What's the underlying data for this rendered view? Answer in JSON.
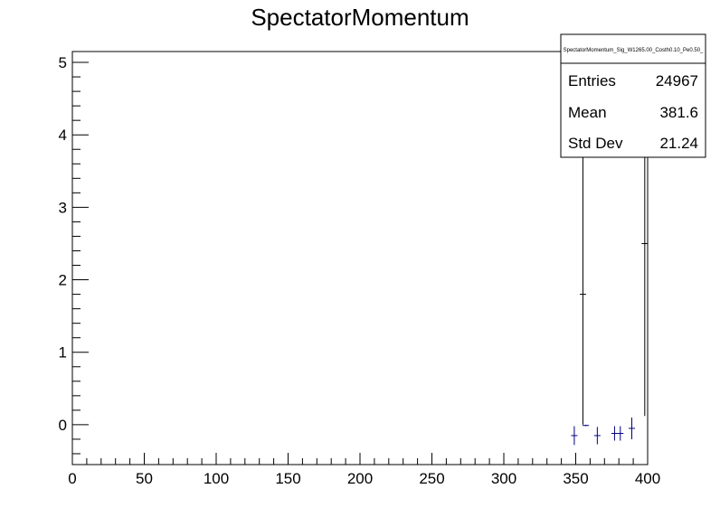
{
  "chart_data": {
    "type": "scatter",
    "title": "SpectatorMomentum",
    "xlabel": "",
    "ylabel": "",
    "xlim": [
      0,
      400
    ],
    "ylim": [
      -0.55,
      5.15
    ],
    "x_ticks": [
      0,
      50,
      100,
      150,
      200,
      250,
      300,
      350,
      400
    ],
    "y_ticks": [
      0,
      1,
      2,
      3,
      4,
      5
    ],
    "grid": false,
    "series": [
      {
        "color": "#000000",
        "points": [
          {
            "x": 355,
            "y": 1.8,
            "err_low": 1.8,
            "err_high": 3.35
          },
          {
            "x": 398,
            "y": 2.5,
            "err_low": 2.38,
            "err_high": 2.65
          }
        ]
      },
      {
        "color": "#000080",
        "points": [
          {
            "x": 349,
            "y": -0.15,
            "err_low": 0.13,
            "err_high": 0.13
          },
          {
            "x": 357,
            "y": -0.01,
            "err_low": 0.01,
            "err_high": 0.01
          },
          {
            "x": 365,
            "y": -0.15,
            "err_low": 0.12,
            "err_high": 0.12
          },
          {
            "x": 377,
            "y": -0.12,
            "err_low": 0.1,
            "err_high": 0.1
          },
          {
            "x": 381,
            "y": -0.12,
            "err_low": 0.1,
            "err_high": 0.1
          },
          {
            "x": 389,
            "y": -0.05,
            "err_low": 0.15,
            "err_high": 0.15
          }
        ]
      }
    ]
  },
  "stats_box": {
    "title": "SpectatorMomentum_Sig_W1265.00_Costh0.10_Pe0.50_",
    "rows": [
      {
        "name": "Entries",
        "value": "24967"
      },
      {
        "name": "Mean",
        "value": "381.6"
      },
      {
        "name": "Std Dev",
        "value": "21.24"
      }
    ]
  }
}
